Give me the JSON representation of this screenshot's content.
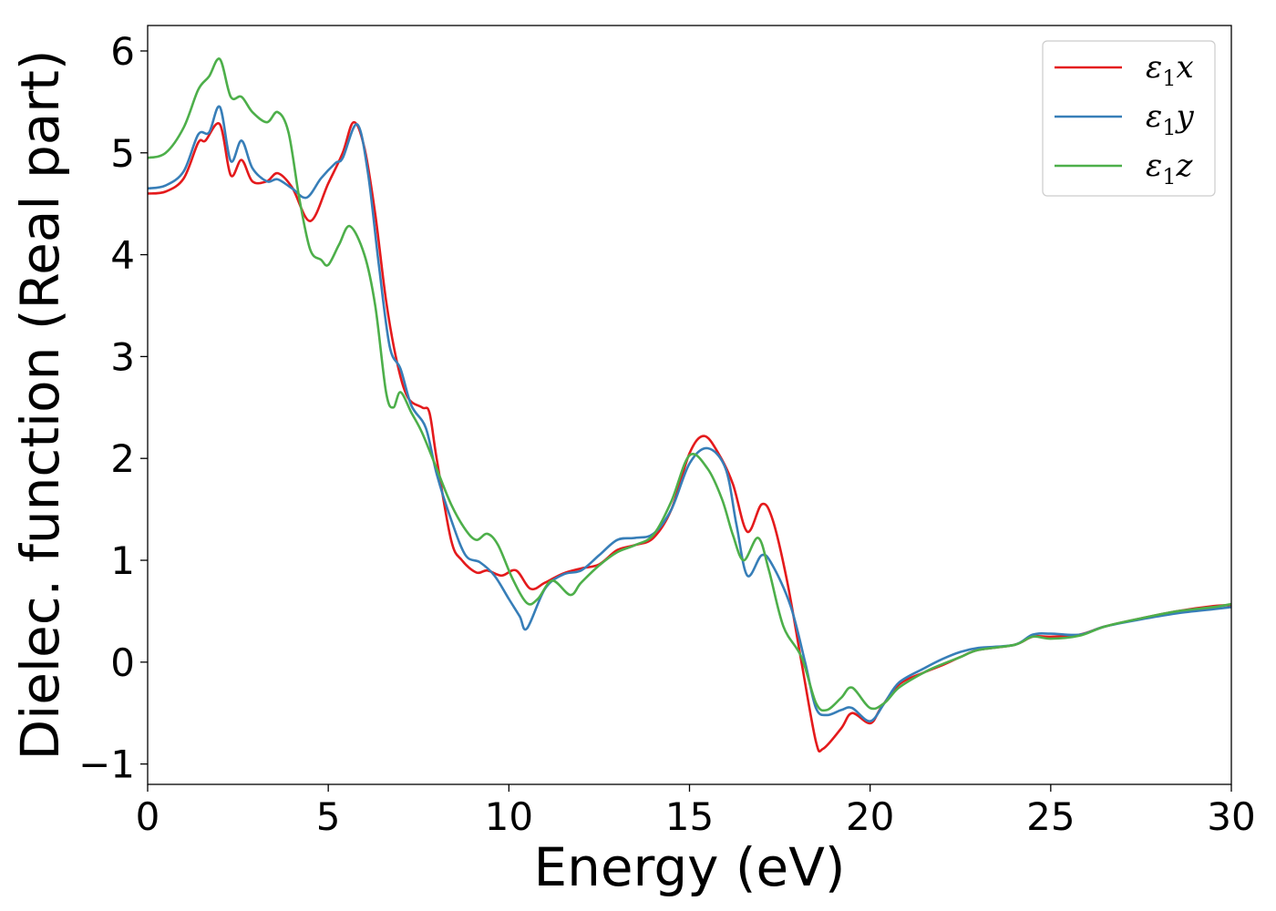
{
  "chart_data": {
    "type": "line",
    "title": "",
    "xlabel": "Energy (eV)",
    "ylabel": "Dielec. function (Real part)",
    "xlim": [
      0,
      30
    ],
    "ylim": [
      -1.2,
      6.25
    ],
    "xticks": [
      0,
      5,
      10,
      15,
      20,
      25,
      30
    ],
    "yticks": [
      -1,
      0,
      1,
      2,
      3,
      4,
      5,
      6
    ],
    "xtick_labels": [
      "0",
      "5",
      "10",
      "15",
      "20",
      "25",
      "30"
    ],
    "ytick_labels": [
      "−1",
      "0",
      "1",
      "2",
      "3",
      "4",
      "5",
      "6"
    ],
    "grid": false,
    "legend_position": "top-right",
    "series": [
      {
        "name": "ε1x",
        "color": "#e41a1c",
        "points": [
          [
            0,
            4.6
          ],
          [
            0.5,
            4.62
          ],
          [
            1.0,
            4.75
          ],
          [
            1.4,
            5.1
          ],
          [
            1.6,
            5.12
          ],
          [
            2.0,
            5.28
          ],
          [
            2.3,
            4.78
          ],
          [
            2.6,
            4.93
          ],
          [
            2.9,
            4.72
          ],
          [
            3.3,
            4.72
          ],
          [
            3.6,
            4.8
          ],
          [
            4.0,
            4.66
          ],
          [
            4.5,
            4.33
          ],
          [
            5.0,
            4.7
          ],
          [
            5.4,
            5.0
          ],
          [
            5.7,
            5.3
          ],
          [
            6.0,
            5.05
          ],
          [
            6.3,
            4.4
          ],
          [
            6.6,
            3.55
          ],
          [
            6.9,
            2.95
          ],
          [
            7.2,
            2.6
          ],
          [
            7.6,
            2.5
          ],
          [
            7.8,
            2.45
          ],
          [
            8.0,
            2.0
          ],
          [
            8.4,
            1.2
          ],
          [
            8.7,
            1.0
          ],
          [
            9.1,
            0.88
          ],
          [
            9.4,
            0.9
          ],
          [
            9.8,
            0.85
          ],
          [
            10.2,
            0.9
          ],
          [
            10.6,
            0.72
          ],
          [
            11.0,
            0.78
          ],
          [
            11.5,
            0.87
          ],
          [
            12.0,
            0.92
          ],
          [
            12.5,
            0.96
          ],
          [
            13.0,
            1.1
          ],
          [
            13.5,
            1.15
          ],
          [
            14.0,
            1.22
          ],
          [
            14.5,
            1.5
          ],
          [
            15.0,
            2.05
          ],
          [
            15.4,
            2.22
          ],
          [
            15.8,
            2.05
          ],
          [
            16.2,
            1.75
          ],
          [
            16.6,
            1.28
          ],
          [
            17.0,
            1.55
          ],
          [
            17.3,
            1.4
          ],
          [
            17.7,
            0.8
          ],
          [
            18.1,
            0.0
          ],
          [
            18.5,
            -0.78
          ],
          [
            18.7,
            -0.85
          ],
          [
            19.2,
            -0.65
          ],
          [
            19.5,
            -0.5
          ],
          [
            20.0,
            -0.6
          ],
          [
            20.3,
            -0.45
          ],
          [
            20.8,
            -0.22
          ],
          [
            21.5,
            -0.1
          ],
          [
            22.0,
            -0.03
          ],
          [
            22.5,
            0.05
          ],
          [
            23.0,
            0.12
          ],
          [
            24.0,
            0.17
          ],
          [
            24.5,
            0.25
          ],
          [
            25.0,
            0.25
          ],
          [
            25.8,
            0.27
          ],
          [
            26.5,
            0.35
          ],
          [
            27.5,
            0.43
          ],
          [
            28.5,
            0.5
          ],
          [
            29.5,
            0.55
          ],
          [
            30,
            0.56
          ]
        ]
      },
      {
        "name": "ε1y",
        "color": "#377eb8",
        "points": [
          [
            0,
            4.65
          ],
          [
            0.5,
            4.68
          ],
          [
            1.0,
            4.82
          ],
          [
            1.4,
            5.18
          ],
          [
            1.7,
            5.2
          ],
          [
            2.0,
            5.45
          ],
          [
            2.3,
            4.92
          ],
          [
            2.6,
            5.12
          ],
          [
            2.9,
            4.85
          ],
          [
            3.3,
            4.72
          ],
          [
            3.6,
            4.74
          ],
          [
            4.0,
            4.65
          ],
          [
            4.4,
            4.56
          ],
          [
            4.8,
            4.75
          ],
          [
            5.2,
            4.9
          ],
          [
            5.4,
            4.95
          ],
          [
            5.8,
            5.28
          ],
          [
            6.1,
            4.8
          ],
          [
            6.4,
            3.9
          ],
          [
            6.7,
            3.1
          ],
          [
            7.0,
            2.88
          ],
          [
            7.3,
            2.52
          ],
          [
            7.7,
            2.3
          ],
          [
            8.0,
            1.85
          ],
          [
            8.4,
            1.4
          ],
          [
            8.8,
            1.05
          ],
          [
            9.2,
            0.98
          ],
          [
            9.6,
            0.85
          ],
          [
            10.0,
            0.62
          ],
          [
            10.3,
            0.45
          ],
          [
            10.5,
            0.33
          ],
          [
            11.0,
            0.72
          ],
          [
            11.5,
            0.86
          ],
          [
            12.0,
            0.9
          ],
          [
            12.5,
            1.05
          ],
          [
            13.0,
            1.2
          ],
          [
            13.5,
            1.22
          ],
          [
            14.0,
            1.26
          ],
          [
            14.5,
            1.5
          ],
          [
            15.0,
            1.95
          ],
          [
            15.5,
            2.1
          ],
          [
            16.0,
            1.9
          ],
          [
            16.3,
            1.35
          ],
          [
            16.6,
            0.85
          ],
          [
            17.0,
            1.05
          ],
          [
            17.3,
            0.95
          ],
          [
            17.8,
            0.55
          ],
          [
            18.2,
            0.0
          ],
          [
            18.5,
            -0.45
          ],
          [
            18.8,
            -0.52
          ],
          [
            19.2,
            -0.47
          ],
          [
            19.5,
            -0.45
          ],
          [
            20.0,
            -0.58
          ],
          [
            20.4,
            -0.4
          ],
          [
            20.8,
            -0.2
          ],
          [
            21.5,
            -0.06
          ],
          [
            22.0,
            0.03
          ],
          [
            22.5,
            0.1
          ],
          [
            23.0,
            0.14
          ],
          [
            24.0,
            0.17
          ],
          [
            24.5,
            0.27
          ],
          [
            25.0,
            0.28
          ],
          [
            25.8,
            0.27
          ],
          [
            26.5,
            0.35
          ],
          [
            27.5,
            0.42
          ],
          [
            28.5,
            0.48
          ],
          [
            29.5,
            0.52
          ],
          [
            30,
            0.54
          ]
        ]
      },
      {
        "name": "ε1z",
        "color": "#4daf4a",
        "points": [
          [
            0,
            4.95
          ],
          [
            0.5,
            5.0
          ],
          [
            1.0,
            5.25
          ],
          [
            1.4,
            5.62
          ],
          [
            1.7,
            5.75
          ],
          [
            2.0,
            5.92
          ],
          [
            2.3,
            5.55
          ],
          [
            2.6,
            5.55
          ],
          [
            2.9,
            5.4
          ],
          [
            3.3,
            5.3
          ],
          [
            3.6,
            5.4
          ],
          [
            3.9,
            5.2
          ],
          [
            4.2,
            4.55
          ],
          [
            4.5,
            4.05
          ],
          [
            4.8,
            3.95
          ],
          [
            5.0,
            3.9
          ],
          [
            5.3,
            4.1
          ],
          [
            5.6,
            4.28
          ],
          [
            6.0,
            4.0
          ],
          [
            6.3,
            3.5
          ],
          [
            6.6,
            2.65
          ],
          [
            6.8,
            2.5
          ],
          [
            7.0,
            2.65
          ],
          [
            7.3,
            2.45
          ],
          [
            7.6,
            2.25
          ],
          [
            8.0,
            1.9
          ],
          [
            8.4,
            1.55
          ],
          [
            8.8,
            1.3
          ],
          [
            9.1,
            1.2
          ],
          [
            9.4,
            1.26
          ],
          [
            9.7,
            1.15
          ],
          [
            10.1,
            0.82
          ],
          [
            10.5,
            0.58
          ],
          [
            10.8,
            0.62
          ],
          [
            11.2,
            0.8
          ],
          [
            11.7,
            0.66
          ],
          [
            12.0,
            0.78
          ],
          [
            12.5,
            0.95
          ],
          [
            13.0,
            1.08
          ],
          [
            13.5,
            1.15
          ],
          [
            14.0,
            1.25
          ],
          [
            14.5,
            1.58
          ],
          [
            15.0,
            2.03
          ],
          [
            15.5,
            1.9
          ],
          [
            15.9,
            1.6
          ],
          [
            16.2,
            1.25
          ],
          [
            16.5,
            1.0
          ],
          [
            16.9,
            1.22
          ],
          [
            17.2,
            0.9
          ],
          [
            17.6,
            0.35
          ],
          [
            18.1,
            0.05
          ],
          [
            18.5,
            -0.4
          ],
          [
            18.8,
            -0.47
          ],
          [
            19.2,
            -0.35
          ],
          [
            19.5,
            -0.25
          ],
          [
            20.0,
            -0.45
          ],
          [
            20.4,
            -0.4
          ],
          [
            20.8,
            -0.25
          ],
          [
            21.5,
            -0.1
          ],
          [
            22.0,
            -0.02
          ],
          [
            22.5,
            0.05
          ],
          [
            23.0,
            0.12
          ],
          [
            24.0,
            0.17
          ],
          [
            24.5,
            0.25
          ],
          [
            25.0,
            0.23
          ],
          [
            25.8,
            0.26
          ],
          [
            26.5,
            0.35
          ],
          [
            27.5,
            0.43
          ],
          [
            28.5,
            0.5
          ],
          [
            29.5,
            0.54
          ],
          [
            30,
            0.57
          ]
        ]
      }
    ]
  },
  "legend": {
    "entries": [
      {
        "base": "ε",
        "sub": "1",
        "comp": "x"
      },
      {
        "base": "ε",
        "sub": "1",
        "comp": "y"
      },
      {
        "base": "ε",
        "sub": "1",
        "comp": "z"
      }
    ]
  }
}
